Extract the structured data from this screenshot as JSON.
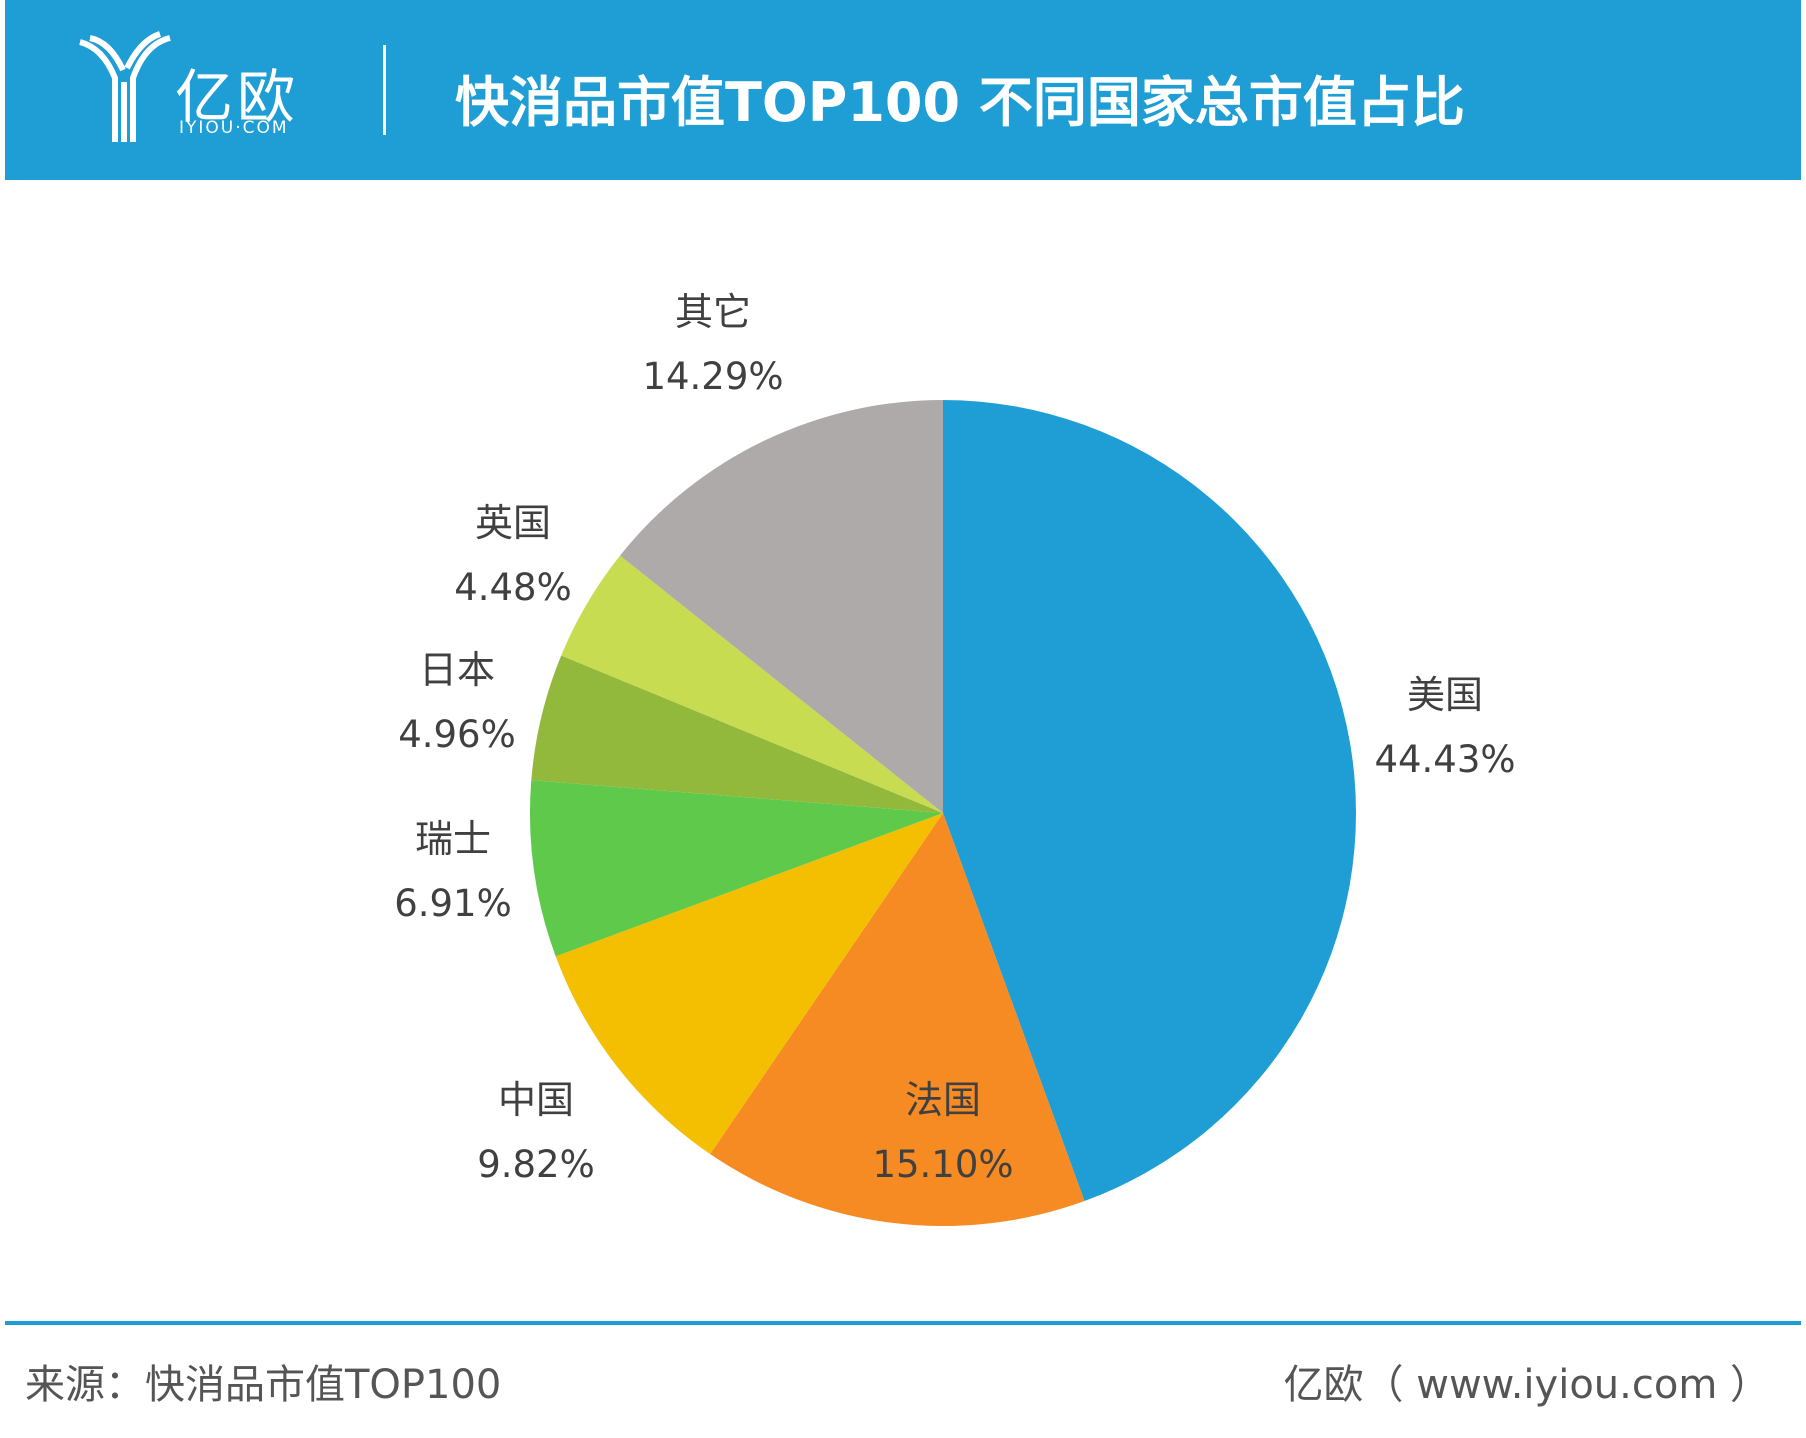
{
  "header": {
    "logo_name": "亿欧",
    "logo_domain": "IYIOU·COM",
    "title": "快消品市值TOP100 不同国家总市值占比"
  },
  "chart_data": {
    "type": "pie",
    "title": "快消品市值TOP100 不同国家总市值占比",
    "slices": [
      {
        "label": "美国",
        "value": 44.43,
        "display": "44.43%",
        "color": "#1e9ed4"
      },
      {
        "label": "法国",
        "value": 15.1,
        "display": "15.10%",
        "color": "#f58b22"
      },
      {
        "label": "中国",
        "value": 9.82,
        "display": "9.82%",
        "color": "#f4bf00"
      },
      {
        "label": "瑞士",
        "value": 6.91,
        "display": "6.91%",
        "color": "#5fc94c"
      },
      {
        "label": "日本",
        "value": 4.96,
        "display": "4.96%",
        "color": "#93b93c"
      },
      {
        "label": "英国",
        "value": 4.48,
        "display": "4.48%",
        "color": "#c8dc52"
      },
      {
        "label": "其它",
        "value": 14.29,
        "display": "14.29%",
        "color": "#aeaaaa"
      }
    ],
    "start": "12 o'clock",
    "direction": "clockwise"
  },
  "footer": {
    "source": "来源：快消品市值TOP100",
    "credit": "亿欧（ www.iyiou.com ）"
  }
}
